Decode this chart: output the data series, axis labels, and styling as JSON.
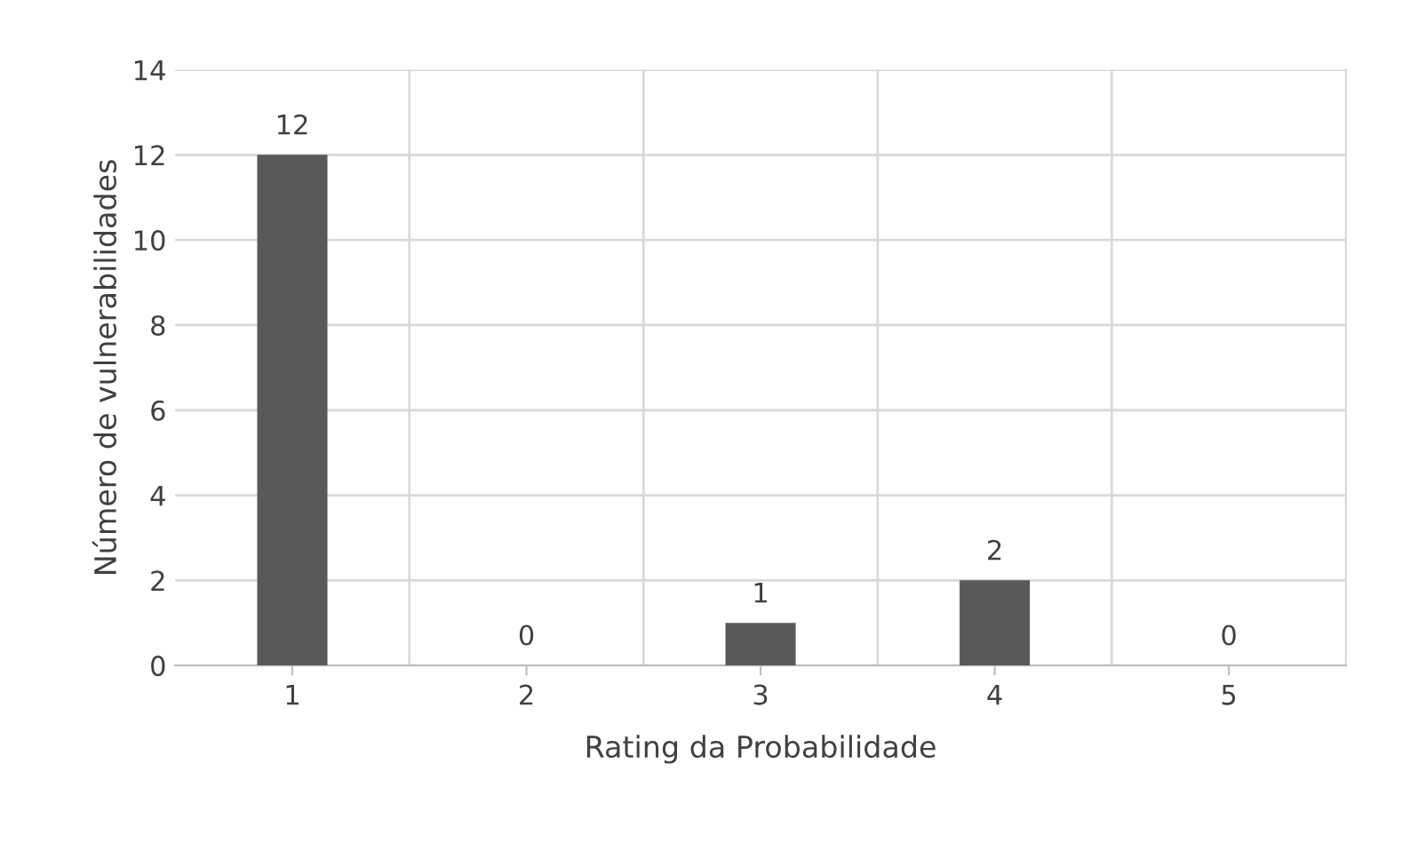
{
  "chart_data": {
    "type": "bar",
    "xlabel": "Rating da Probabilidade",
    "ylabel": "Número de vulnerabilidades",
    "categories": [
      "1",
      "2",
      "3",
      "4",
      "5"
    ],
    "values": [
      12,
      0,
      1,
      2,
      0
    ],
    "color": "#595959",
    "ylim": [
      0,
      14
    ],
    "yticks": [
      0,
      2,
      4,
      6,
      8,
      10,
      12,
      14
    ],
    "grid": true,
    "data_labels": true
  }
}
